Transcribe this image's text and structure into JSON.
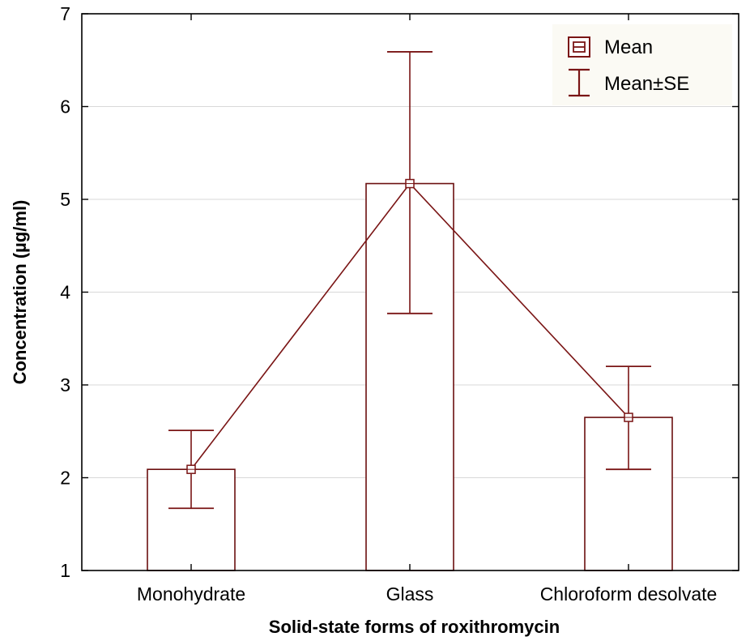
{
  "chart_data": {
    "type": "bar",
    "xlabel": "Solid-state forms of roxithromycin",
    "ylabel": "Concentration (µg/ml)",
    "categories": [
      "Monohydrate",
      "Glass",
      "Chloroform desolvate"
    ],
    "ylim": [
      1,
      7
    ],
    "yticks": [
      "1",
      "2",
      "3",
      "4",
      "5",
      "6",
      "7"
    ],
    "grid": true,
    "legend_position": "top-right",
    "legend": {
      "mean_label": "Mean",
      "se_label": "Mean±SE"
    },
    "series": [
      {
        "name": "Mean",
        "values": [
          2.09,
          5.17,
          2.65
        ]
      }
    ],
    "error_bars": {
      "name": "Mean±SE",
      "lower": [
        1.67,
        3.77,
        2.09
      ],
      "upper": [
        2.51,
        6.59,
        3.2
      ]
    },
    "colors": {
      "bar_stroke": "#6b0f0f",
      "line": "#7a1515",
      "grid": "#d9d9d9",
      "axis": "#000000"
    }
  }
}
